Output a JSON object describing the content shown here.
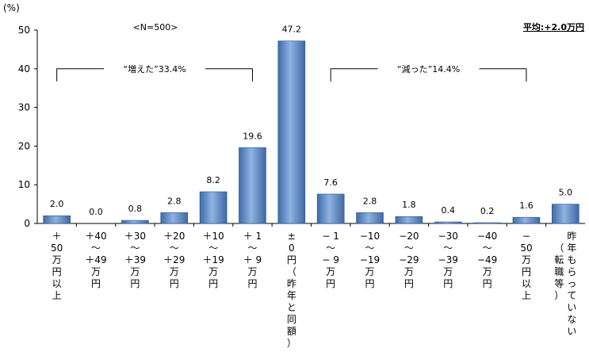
{
  "chart_data": {
    "type": "bar",
    "title": "",
    "ylabel": "(%)",
    "ylim": [
      0,
      50
    ],
    "yticks": [
      "0",
      "10",
      "20",
      "30",
      "40",
      "50"
    ],
    "sample_note": "<N=500>",
    "average_note": "平均:+2.0万円",
    "bar_color": "#5b87c5",
    "categories": [
      "＋50万円以上",
      "＋40〜＋49万円",
      "＋30〜＋39万円",
      "＋20〜＋29万円",
      "＋10〜＋19万円",
      "＋1〜＋9万円",
      "±0円（昨年と同額）",
      "−1〜−9万円",
      "−10〜−19万円",
      "−20〜−29万円",
      "−30〜−39万円",
      "−40〜−49万円",
      "−50万円以上",
      "昨年もらっていない（転職等）"
    ],
    "category_lines": [
      [
        "＋",
        "50",
        "万",
        "円",
        "以",
        "上"
      ],
      [
        "＋40",
        "〜",
        "＋49",
        "万",
        "円"
      ],
      [
        "＋30",
        "〜",
        "＋39",
        "万",
        "円"
      ],
      [
        "＋20",
        "〜",
        "＋29",
        "万",
        "円"
      ],
      [
        "＋10",
        "〜",
        "＋19",
        "万",
        "円"
      ],
      [
        "＋ 1",
        "〜",
        "＋ 9",
        "万",
        "円"
      ],
      [
        "±",
        "0",
        "円",
        "（",
        "昨",
        "年",
        "と",
        "同",
        "額",
        "）"
      ],
      [
        "− 1",
        "〜",
        "− 9",
        "万",
        "円"
      ],
      [
        "−10",
        "〜",
        "−19",
        "万",
        "円"
      ],
      [
        "−20",
        "〜",
        "−29",
        "万",
        "円"
      ],
      [
        "−30",
        "〜",
        "−39",
        "万",
        "円"
      ],
      [
        "−40",
        "〜",
        "−49",
        "万",
        "円"
      ],
      [
        "−",
        "50",
        "万",
        "円",
        "以",
        "上"
      ],
      [
        "昨",
        "年",
        "も",
        "ら",
        "っ",
        "て",
        "い",
        "な",
        "い"
      ]
    ],
    "extra_column": [
      "（",
      "転",
      "職",
      "等",
      "）"
    ],
    "values": [
      2.0,
      0.0,
      0.8,
      2.8,
      8.2,
      19.6,
      47.2,
      7.6,
      2.8,
      1.8,
      0.4,
      0.2,
      1.6,
      5.0
    ],
    "value_labels": [
      "2.0",
      "0.0",
      "0.8",
      "2.8",
      "8.2",
      "19.6",
      "47.2",
      "7.6",
      "2.8",
      "1.8",
      "0.4",
      "0.2",
      "1.6",
      "5.0"
    ],
    "groups": [
      {
        "label": "“増えた”33.4%",
        "from": 0,
        "to": 5,
        "bracket_level": 40
      },
      {
        "label": "“減った”14.4%",
        "from": 7,
        "to": 12,
        "bracket_level": 40
      }
    ]
  }
}
